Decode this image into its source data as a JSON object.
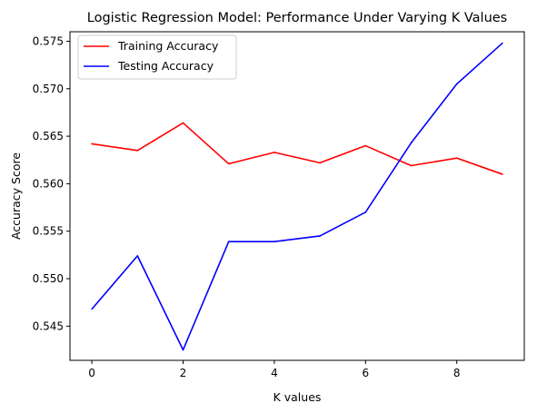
{
  "chart_data": {
    "type": "line",
    "title": "Logistic Regression Model: Performance Under Varying K Values",
    "xlabel": "K values",
    "ylabel": "Accuracy Score",
    "x": [
      0,
      1,
      2,
      3,
      4,
      5,
      6,
      7,
      8,
      9
    ],
    "xlim": [
      -0.48,
      9.48
    ],
    "ylim": [
      0.5414,
      0.576
    ],
    "xticks": [
      0,
      2,
      4,
      6,
      8
    ],
    "xtick_labels": [
      "0",
      "2",
      "4",
      "6",
      "8"
    ],
    "yticks": [
      0.545,
      0.55,
      0.555,
      0.56,
      0.565,
      0.57,
      0.575
    ],
    "ytick_labels": [
      "0.545",
      "0.550",
      "0.555",
      "0.560",
      "0.565",
      "0.570",
      "0.575"
    ],
    "grid": false,
    "legend_position": "top-left",
    "series": [
      {
        "name": "Training Accuracy",
        "color": "#ff0000",
        "values": [
          0.5642,
          0.5635,
          0.5664,
          0.5621,
          0.5633,
          0.5622,
          0.564,
          0.5619,
          0.5627,
          0.561
        ]
      },
      {
        "name": "Testing Accuracy",
        "color": "#0000ff",
        "values": [
          0.5468,
          0.5524,
          0.5425,
          0.5539,
          0.5539,
          0.5545,
          0.557,
          0.5643,
          0.5705,
          0.5748
        ]
      }
    ]
  }
}
